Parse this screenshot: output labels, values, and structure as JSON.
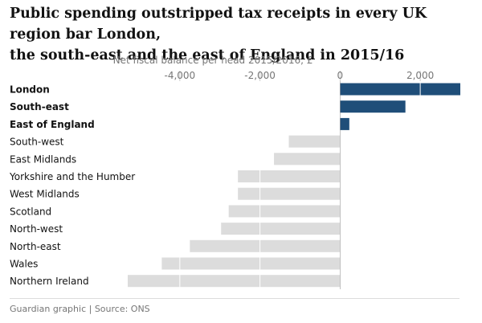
{
  "title_lines": [
    "Public spending outstripped tax receipts in every UK region bar London,",
    "the south-east and the east of England in 2015/16"
  ],
  "source": "Guardian graphic | Source: ONS",
  "colors": {
    "positive": "#1f4e79",
    "negative": "#dcdcdc",
    "grid": "#ffffff",
    "axis_text": "#767676",
    "label_text": "#121212",
    "zero_line": "#999999"
  },
  "chart_data": {
    "type": "bar",
    "orientation": "horizontal",
    "title": "Public spending outstripped tax receipts in every UK region bar London, the south-east and the east of England in 2015/16",
    "xlabel": "Net fiscal balance per head 2015/2016, £",
    "ylabel": "",
    "xlim": [
      -5300,
      3000
    ],
    "xticks": [
      -4000,
      -2000,
      0,
      2000
    ],
    "xtick_labels": [
      "-4,000",
      "-2,000",
      "0",
      "2,000"
    ],
    "grid": true,
    "categories": [
      "London",
      "South-east",
      "East of England",
      "South-west",
      "East Midlands",
      "Yorkshire and the Humber",
      "West Midlands",
      "Scotland",
      "North-west",
      "North-east",
      "Wales",
      "Northern Ireland"
    ],
    "bold_categories": [
      "London",
      "South-east",
      "East of England"
    ],
    "values": [
      3000,
      1630,
      230,
      -1280,
      -1650,
      -2550,
      -2550,
      -2780,
      -2970,
      -3750,
      -4450,
      -5300
    ]
  }
}
